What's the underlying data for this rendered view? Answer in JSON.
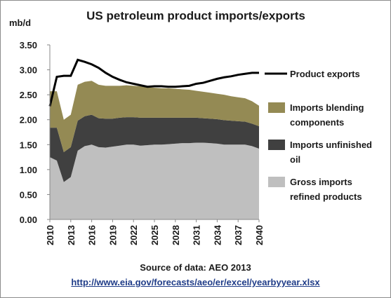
{
  "chart_data": {
    "type": "area",
    "title": "US petroleum product imports/exports",
    "y_label": "mb/d",
    "source": "Source of data: AEO 2013",
    "url": "http://www.eia.gov/forecasts/aeo/er/excel/yearbyyear.xlsx",
    "x": [
      2010,
      2011,
      2012,
      2013,
      2014,
      2015,
      2016,
      2017,
      2018,
      2019,
      2020,
      2021,
      2022,
      2023,
      2024,
      2025,
      2026,
      2027,
      2028,
      2029,
      2030,
      2031,
      2032,
      2033,
      2034,
      2035,
      2036,
      2037,
      2038,
      2039,
      2040
    ],
    "xlim": [
      2010,
      2040
    ],
    "xticks": [
      2010,
      2013,
      2016,
      2019,
      2022,
      2025,
      2028,
      2031,
      2034,
      2037,
      2040
    ],
    "ylim": [
      0,
      3.5
    ],
    "yticks": [
      {
        "value": 0,
        "label": "0.00"
      },
      {
        "value": 0.5,
        "label": "0.50"
      },
      {
        "value": 1,
        "label": "1.00"
      },
      {
        "value": 1.5,
        "label": "1.50"
      },
      {
        "value": 2,
        "label": "2.00"
      },
      {
        "value": 2.5,
        "label": "2.50"
      },
      {
        "value": 3,
        "label": "3.00"
      },
      {
        "value": 3.5,
        "label": "3.50"
      }
    ],
    "stacked": true,
    "series": [
      {
        "name": "Gross imports refined products",
        "color": "#bfbfbf",
        "values": [
          1.25,
          1.18,
          0.75,
          0.85,
          1.38,
          1.47,
          1.5,
          1.45,
          1.44,
          1.46,
          1.48,
          1.5,
          1.5,
          1.48,
          1.49,
          1.5,
          1.5,
          1.51,
          1.52,
          1.53,
          1.53,
          1.54,
          1.54,
          1.53,
          1.52,
          1.5,
          1.5,
          1.5,
          1.5,
          1.47,
          1.42
        ]
      },
      {
        "name": "Imports unfinished oil",
        "color": "#404040",
        "values": [
          0.59,
          0.66,
          0.6,
          0.6,
          0.6,
          0.6,
          0.6,
          0.58,
          0.58,
          0.56,
          0.56,
          0.55,
          0.55,
          0.56,
          0.55,
          0.54,
          0.54,
          0.53,
          0.52,
          0.51,
          0.51,
          0.5,
          0.49,
          0.49,
          0.49,
          0.49,
          0.48,
          0.47,
          0.46,
          0.45,
          0.45
        ]
      },
      {
        "name": "Imports blending components",
        "color": "#948a54",
        "values": [
          0.73,
          0.73,
          0.65,
          0.65,
          0.72,
          0.69,
          0.68,
          0.67,
          0.66,
          0.66,
          0.64,
          0.64,
          0.63,
          0.63,
          0.61,
          0.6,
          0.59,
          0.59,
          0.58,
          0.57,
          0.56,
          0.54,
          0.53,
          0.52,
          0.51,
          0.51,
          0.49,
          0.48,
          0.47,
          0.45,
          0.41
        ]
      },
      {
        "name": "Product exports",
        "color": "#000000",
        "type": "line",
        "values": [
          2.27,
          2.86,
          2.88,
          2.88,
          3.2,
          3.16,
          3.11,
          3.04,
          2.94,
          2.86,
          2.8,
          2.75,
          2.72,
          2.69,
          2.66,
          2.67,
          2.67,
          2.66,
          2.66,
          2.67,
          2.68,
          2.72,
          2.74,
          2.78,
          2.82,
          2.85,
          2.87,
          2.9,
          2.92,
          2.94,
          2.94
        ]
      }
    ]
  }
}
